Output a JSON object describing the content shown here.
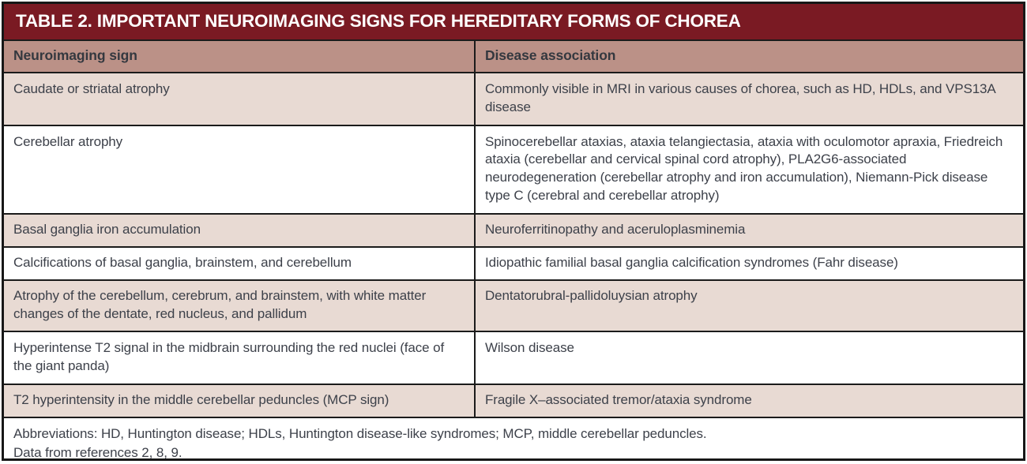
{
  "title": "TABLE 2. IMPORTANT NEUROIMAGING SIGNS FOR HEREDITARY FORMS OF CHOREA",
  "table": {
    "columns": [
      "Neuroimaging sign",
      "Disease association"
    ],
    "rows": [
      {
        "sign": "Caudate or striatal atrophy",
        "disease": "Commonly visible in MRI in various causes of chorea, such as HD, HDLs, and VPS13A disease"
      },
      {
        "sign": "Cerebellar atrophy",
        "disease": "Spinocerebellar ataxias, ataxia telangiectasia, ataxia with oculomotor apraxia, Friedreich ataxia (cerebellar and cervical spinal cord atrophy), PLA2G6-associated neurodegeneration (cerebellar atrophy and iron accumulation), Niemann-Pick disease type C (cerebral and cerebellar atrophy)"
      },
      {
        "sign": "Basal ganglia iron accumulation",
        "disease": "Neuroferritinopathy and aceruloplasminemia"
      },
      {
        "sign": "Calcifications of basal ganglia, brainstem, and cerebellum",
        "disease": "Idiopathic familial basal ganglia calcification syndromes (Fahr disease)"
      },
      {
        "sign": "Atrophy of the cerebellum, cerebrum, and brainstem, with white matter changes of the dentate, red nucleus, and pallidum",
        "disease": "Dentatorubral-pallidoluysian atrophy"
      },
      {
        "sign": "Hyperintense T2 signal in the midbrain surrounding the red nuclei (face of the giant panda)",
        "disease": "Wilson disease"
      },
      {
        "sign": "T2 hyperintensity in the middle cerebellar peduncles (MCP sign)",
        "disease": "Fragile X–associated tremor/ataxia syndrome"
      }
    ],
    "footnotes": [
      "Abbreviations: HD, Huntington disease; HDLs, Huntington disease-like syndromes; MCP, middle cerebellar peduncles.",
      "Data from references 2, 8, 9."
    ]
  },
  "colors": {
    "title_bar_bg": "#7a1a23",
    "title_text": "#ffffff",
    "header_row_bg": "#bb9187",
    "row_shaded_bg": "#e8dad3",
    "row_plain_bg": "#ffffff",
    "border": "#1b1b1b",
    "body_text": "#3d414a"
  }
}
